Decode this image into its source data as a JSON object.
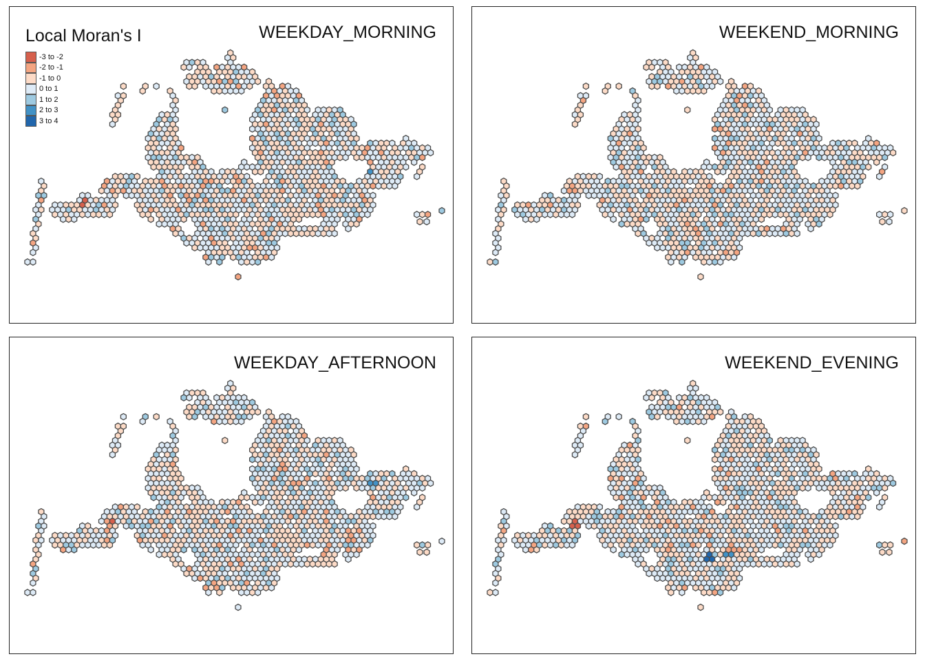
{
  "legend": {
    "title": "Local Moran's I",
    "items": [
      {
        "label": "-3 to -2",
        "color": "#d6604d"
      },
      {
        "label": "-2 to -1",
        "color": "#f4a582"
      },
      {
        "label": "-1 to 0",
        "color": "#fddbc7"
      },
      {
        "label": "0 to 1",
        "color": "#deebf7"
      },
      {
        "label": "1 to 2",
        "color": "#9ecae1"
      },
      {
        "label": "2 to 3",
        "color": "#4292c6"
      },
      {
        "label": "3 to 4",
        "color": "#2166ac"
      }
    ]
  },
  "panels": [
    {
      "title": "WEEKDAY_MORNING"
    },
    {
      "title": "WEEKEND_MORNING"
    },
    {
      "title": "WEEKDAY_AFTERNOON"
    },
    {
      "title": "WEEKEND_EVENING"
    }
  ],
  "colors": {
    "hex_border": "#4a4a4a",
    "frame": "#222222",
    "background": "#ffffff"
  }
}
